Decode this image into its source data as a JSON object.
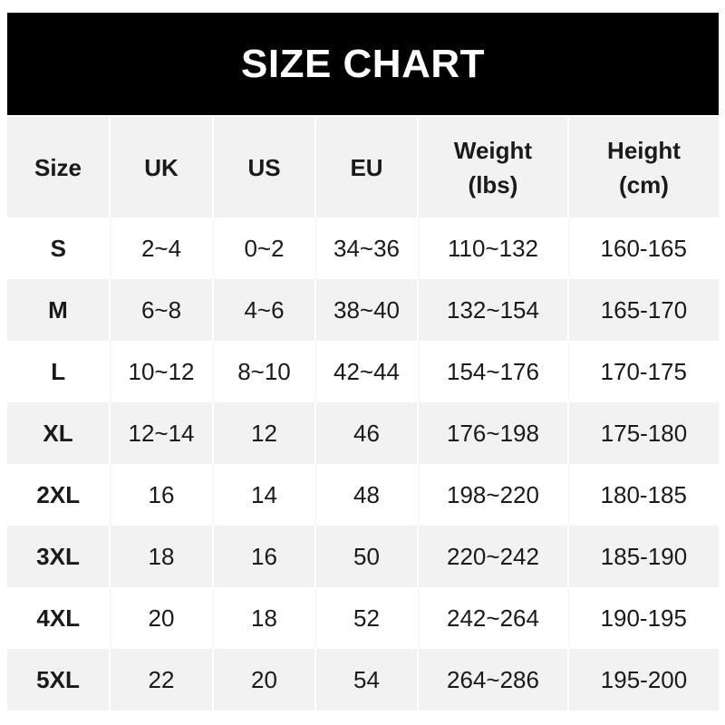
{
  "title": "SIZE CHART",
  "headers": [
    "Size",
    "UK",
    "US",
    "EU",
    "Weight\n(lbs)",
    "Height\n(cm)"
  ],
  "header_lines": [
    [
      "Size"
    ],
    [
      "UK"
    ],
    [
      "US"
    ],
    [
      "EU"
    ],
    [
      "Weight",
      "(lbs)"
    ],
    [
      "Height",
      "(cm)"
    ]
  ],
  "rows": [
    [
      "S",
      "2~4",
      "0~2",
      "34~36",
      "110~132",
      "160-165"
    ],
    [
      "M",
      "6~8",
      "4~6",
      "38~40",
      "132~154",
      "165-170"
    ],
    [
      "L",
      "10~12",
      "8~10",
      "42~44",
      "154~176",
      "170-175"
    ],
    [
      "XL",
      "12~14",
      "12",
      "46",
      "176~198",
      "175-180"
    ],
    [
      "2XL",
      "16",
      "14",
      "48",
      "198~220",
      "180-185"
    ],
    [
      "3XL",
      "18",
      "16",
      "50",
      "220~242",
      "185-190"
    ],
    [
      "4XL",
      "20",
      "18",
      "52",
      "242~264",
      "190-195"
    ],
    [
      "5XL",
      "22",
      "20",
      "54",
      "264~286",
      "195-200"
    ]
  ],
  "colors": {
    "title_bg": "#000000",
    "title_text": "#ffffff",
    "stripe": "#f2f2f2"
  }
}
